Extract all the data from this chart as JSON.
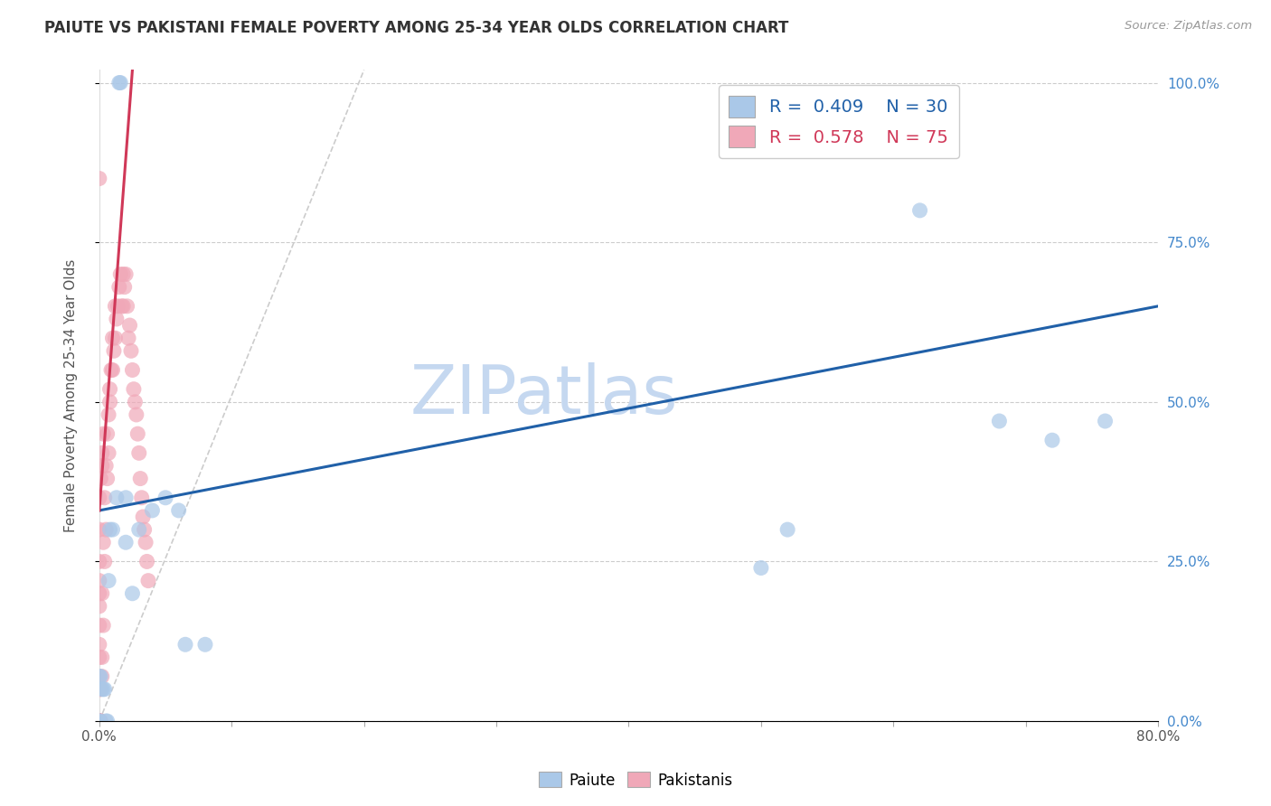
{
  "title": "PAIUTE VS PAKISTANI FEMALE POVERTY AMONG 25-34 YEAR OLDS CORRELATION CHART",
  "source": "Source: ZipAtlas.com",
  "ylabel": "Female Poverty Among 25-34 Year Olds",
  "paiute_R": 0.409,
  "paiute_N": 30,
  "pakistani_R": 0.578,
  "pakistani_N": 75,
  "blue_color": "#aac8e8",
  "pink_color": "#f0a8b8",
  "blue_line_color": "#2060a8",
  "pink_line_color": "#d03858",
  "dash_line_color": "#cccccc",
  "background_color": "#ffffff",
  "grid_color": "#cccccc",
  "watermark_color": "#c5d8f0",
  "xlim": [
    0.0,
    0.8
  ],
  "ylim": [
    0.0,
    1.02
  ],
  "yticks": [
    0.0,
    0.25,
    0.5,
    0.75,
    1.0
  ],
  "paiute_x": [
    0.0,
    0.0,
    0.0,
    0.001,
    0.002,
    0.003,
    0.004,
    0.005,
    0.006,
    0.007,
    0.008,
    0.01,
    0.013,
    0.015,
    0.016,
    0.02,
    0.02,
    0.025,
    0.03,
    0.04,
    0.05,
    0.06,
    0.065,
    0.08,
    0.5,
    0.52,
    0.62,
    0.68,
    0.72,
    0.76
  ],
  "paiute_y": [
    0.0,
    0.0,
    0.07,
    0.07,
    0.05,
    0.05,
    0.05,
    0.0,
    0.0,
    0.22,
    0.3,
    0.3,
    0.35,
    1.0,
    1.0,
    0.35,
    0.28,
    0.2,
    0.3,
    0.33,
    0.35,
    0.33,
    0.12,
    0.12,
    0.24,
    0.3,
    0.8,
    0.47,
    0.44,
    0.47
  ],
  "pakistani_x": [
    0.0,
    0.0,
    0.0,
    0.0,
    0.0,
    0.0,
    0.0,
    0.0,
    0.0,
    0.0,
    0.0,
    0.0,
    0.0,
    0.0,
    0.0,
    0.0,
    0.0,
    0.0,
    0.0,
    0.0,
    0.001,
    0.001,
    0.001,
    0.002,
    0.002,
    0.002,
    0.003,
    0.003,
    0.004,
    0.004,
    0.005,
    0.005,
    0.006,
    0.006,
    0.007,
    0.007,
    0.008,
    0.008,
    0.009,
    0.01,
    0.01,
    0.011,
    0.012,
    0.012,
    0.013,
    0.014,
    0.015,
    0.016,
    0.017,
    0.018,
    0.018,
    0.019,
    0.02,
    0.021,
    0.022,
    0.023,
    0.024,
    0.025,
    0.026,
    0.027,
    0.028,
    0.029,
    0.03,
    0.031,
    0.032,
    0.033,
    0.034,
    0.035,
    0.036,
    0.037,
    0.0,
    0.001,
    0.002,
    0.002,
    0.003
  ],
  "pakistani_y": [
    0.0,
    0.0,
    0.0,
    0.0,
    0.0,
    0.0,
    0.0,
    0.0,
    0.05,
    0.05,
    0.07,
    0.1,
    0.12,
    0.15,
    0.18,
    0.2,
    0.22,
    0.25,
    0.85,
    0.3,
    0.0,
    0.0,
    0.05,
    0.07,
    0.1,
    0.2,
    0.15,
    0.28,
    0.25,
    0.35,
    0.3,
    0.4,
    0.38,
    0.45,
    0.42,
    0.48,
    0.5,
    0.52,
    0.55,
    0.55,
    0.6,
    0.58,
    0.6,
    0.65,
    0.63,
    0.65,
    0.68,
    0.7,
    0.65,
    0.7,
    0.65,
    0.68,
    0.7,
    0.65,
    0.6,
    0.62,
    0.58,
    0.55,
    0.52,
    0.5,
    0.48,
    0.45,
    0.42,
    0.38,
    0.35,
    0.32,
    0.3,
    0.28,
    0.25,
    0.22,
    0.35,
    0.38,
    0.4,
    0.42,
    0.45
  ],
  "blue_line_x0": 0.0,
  "blue_line_y0": 0.33,
  "blue_line_x1": 0.8,
  "blue_line_y1": 0.65,
  "pink_line_x0": 0.0,
  "pink_line_y0": 0.33,
  "pink_line_x1": 0.025,
  "pink_line_y1": 1.02,
  "dash_line_x0": 0.0,
  "dash_line_y0": 0.0,
  "dash_line_x1": 0.2,
  "dash_line_y1": 1.02
}
